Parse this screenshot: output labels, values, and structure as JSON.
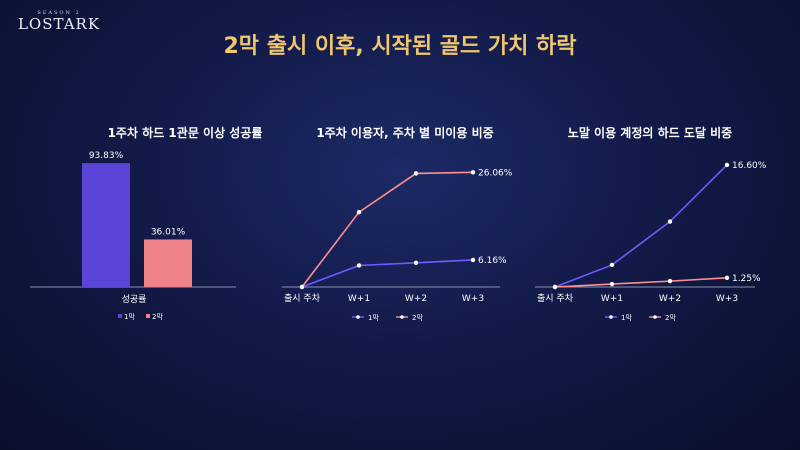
{
  "logo": {
    "season": "SEASON 2",
    "name": "LOSTARK"
  },
  "title": "2막 출시 이후, 시작된 골드 가치 하락",
  "colors": {
    "act1": "#5b44d8",
    "act2": "#f0838a",
    "line1": "#6b5cff",
    "line2": "#ff8f8f",
    "title": "#f2c66d"
  },
  "chart_data": [
    {
      "type": "bar",
      "title": "1주차 하드 1관문 이상 성공률",
      "categories": [
        "성공률"
      ],
      "series": [
        {
          "name": "1막",
          "values": [
            93.83
          ],
          "labels": [
            "93.83%"
          ]
        },
        {
          "name": "2막",
          "values": [
            36.01
          ],
          "labels": [
            "36.01%"
          ]
        }
      ],
      "ylim": [
        0,
        100
      ],
      "legend": "bottom"
    },
    {
      "type": "line",
      "title": "1주차 이용자, 주차 별 미이용 비중",
      "x": [
        "출시 주차",
        "W+1",
        "W+2",
        "W+3"
      ],
      "series": [
        {
          "name": "1막",
          "values": [
            0,
            4.9,
            5.5,
            6.16
          ],
          "end_label": "6.16%"
        },
        {
          "name": "2막",
          "values": [
            0,
            17.0,
            25.8,
            26.06
          ],
          "end_label": "26.06%"
        }
      ],
      "ylim": [
        0,
        30
      ],
      "legend": "bottom"
    },
    {
      "type": "line",
      "title": "노말 이용 계정의 하드 도달 비중",
      "x": [
        "출시 주차",
        "W+1",
        "W+2",
        "W+3"
      ],
      "series": [
        {
          "name": "1막",
          "values": [
            0,
            3.0,
            8.9,
            16.6
          ],
          "end_label": "16.60%"
        },
        {
          "name": "2막",
          "values": [
            0,
            0.4,
            0.8,
            1.25
          ],
          "end_label": "1.25%"
        }
      ],
      "ylim": [
        0,
        17
      ],
      "legend": "bottom"
    }
  ]
}
